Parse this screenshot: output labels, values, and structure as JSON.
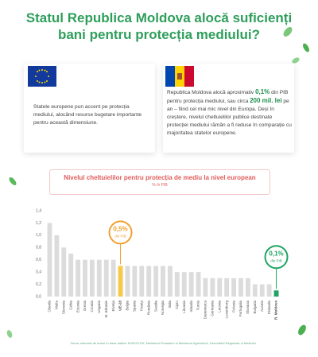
{
  "header": {
    "title": "Statul Republica Moldova alocă suficienți bani pentru protecția mediului?"
  },
  "cards": [
    {
      "text": [
        {
          "t": "Statele europene pun accent pe protecția mediului, alocând resurse bugetare importante pentru această dimensiune."
        }
      ]
    },
    {
      "text": [
        {
          "t": "Republica Moldova alocă aproximativ "
        },
        {
          "t": "0,1%",
          "bold": true
        },
        {
          "t": " din PIB pentru protecția mediului, sau circa "
        },
        {
          "t": "200 mil. lei",
          "bold": true
        },
        {
          "t": " pe an – fiind cel mai mic nivel din Europa. Deși în creștere, nivelul cheltuielilor publice destinate protecției mediului rămân a fi reduse în comparație cu majoritatea statelor europene."
        }
      ]
    }
  ],
  "chart_data": {
    "type": "bar",
    "title": "Nivelul cheltuielilor pentru protecția de mediu la nivel european",
    "subtitle": "% în PIB",
    "categories": [
      "Olanda",
      "Malta",
      "Slovenia",
      "Cehia",
      "Estonia",
      "Grecia",
      "Croatia",
      "Ungaria",
      "M. Britanie",
      "Elveția",
      "UE-28",
      "Belgia",
      "Spania",
      "Franța",
      "România",
      "Suedia",
      "Norvegia",
      "Italia",
      "Cipru",
      "Lituania",
      "Islanda",
      "Turcia",
      "Danemarca",
      "Germania",
      "Letonia",
      "Luxemburg",
      "Polonia",
      "Portugalia",
      "Slovacia",
      "Bulgaria",
      "Austria",
      "Finlanda",
      "R. Moldova"
    ],
    "values": [
      1.2,
      1.0,
      0.8,
      0.7,
      0.6,
      0.6,
      0.6,
      0.6,
      0.6,
      0.6,
      0.5,
      0.5,
      0.5,
      0.5,
      0.5,
      0.5,
      0.5,
      0.5,
      0.4,
      0.4,
      0.4,
      0.4,
      0.3,
      0.3,
      0.3,
      0.3,
      0.3,
      0.3,
      0.3,
      0.2,
      0.2,
      0.2,
      0.1
    ],
    "value_labels": [
      null,
      null,
      null,
      null,
      null,
      null,
      null,
      null,
      null,
      null,
      "0,5%",
      null,
      null,
      null,
      null,
      null,
      null,
      null,
      null,
      null,
      null,
      null,
      null,
      null,
      null,
      null,
      null,
      null,
      null,
      null,
      null,
      null,
      "0,1%"
    ],
    "value_label_note": "din PIB",
    "colors": [
      "#dcdcdc",
      "#dcdcdc",
      "#dcdcdc",
      "#dcdcdc",
      "#dcdcdc",
      "#dcdcdc",
      "#dcdcdc",
      "#dcdcdc",
      "#dcdcdc",
      "#dcdcdc",
      "#f7c948",
      "#dcdcdc",
      "#dcdcdc",
      "#dcdcdc",
      "#dcdcdc",
      "#dcdcdc",
      "#dcdcdc",
      "#dcdcdc",
      "#dcdcdc",
      "#dcdcdc",
      "#dcdcdc",
      "#dcdcdc",
      "#dcdcdc",
      "#dcdcdc",
      "#dcdcdc",
      "#dcdcdc",
      "#dcdcdc",
      "#dcdcdc",
      "#dcdcdc",
      "#dcdcdc",
      "#dcdcdc",
      "#dcdcdc",
      "#1fa463"
    ],
    "label_colors": [
      "#f0a030",
      "#1fa463"
    ],
    "ylim": [
      0,
      1.4
    ],
    "yticks": [
      {
        "value": 0,
        "label": "0,0"
      },
      {
        "value": 0.2,
        "label": "0,2"
      },
      {
        "value": 0.4,
        "label": "0,4"
      },
      {
        "value": 0.6,
        "label": "0,6"
      },
      {
        "value": 0.8,
        "label": "0,8"
      },
      {
        "value": 1,
        "label": "1,0"
      },
      {
        "value": 1.2,
        "label": "1,2"
      },
      {
        "value": 1.4,
        "label": "1,4"
      }
    ],
    "grid": false,
    "source": "Sursa: elaborat de autori în baza datelor EUROSTAT, Ministerul Finanțelor și Ministerul Agriculturii, Dezvoltării Regionale și Mediului"
  }
}
